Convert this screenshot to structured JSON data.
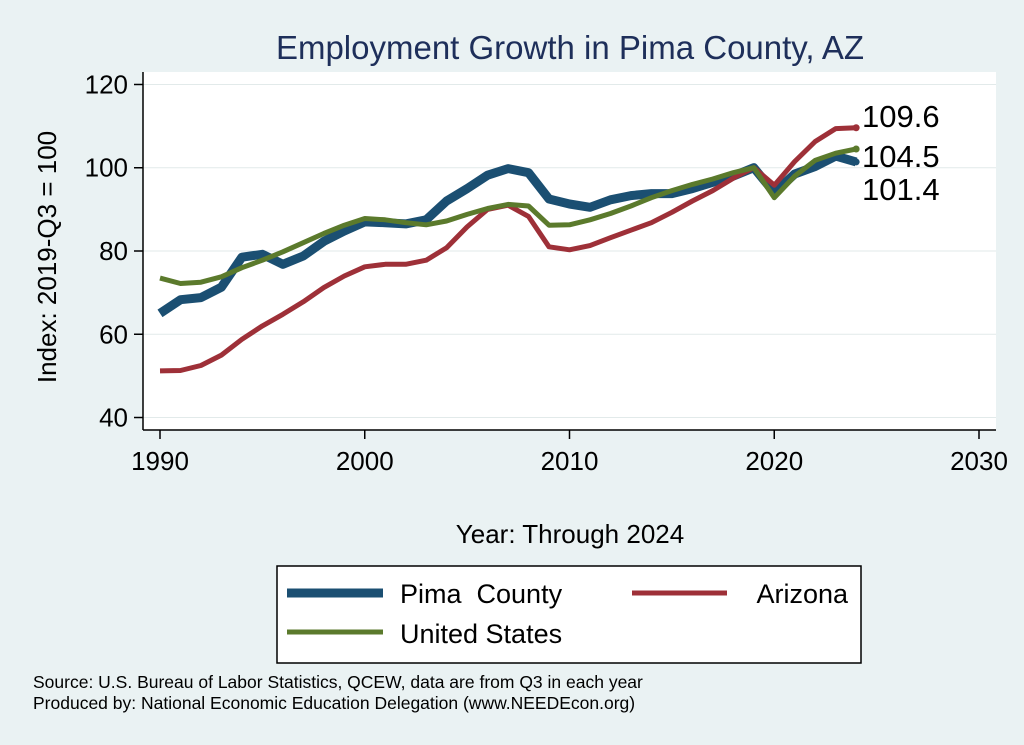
{
  "chart_data": {
    "type": "line",
    "title": "Employment Growth in Pima County, AZ",
    "xlabel": "Year: Through 2024",
    "ylabel": "Index: 2019-Q3 = 100",
    "xlim": [
      1990,
      2030
    ],
    "ylim": [
      37,
      123
    ],
    "xticks": [
      1990,
      2000,
      2010,
      2020,
      2030
    ],
    "yticks": [
      40,
      60,
      80,
      100,
      120
    ],
    "grid": true,
    "legend_position": "bottom",
    "x": [
      1990,
      1991,
      1992,
      1993,
      1994,
      1995,
      1996,
      1997,
      1998,
      1999,
      2000,
      2001,
      2002,
      2003,
      2004,
      2005,
      2006,
      2007,
      2008,
      2009,
      2010,
      2011,
      2012,
      2013,
      2014,
      2015,
      2016,
      2017,
      2018,
      2019,
      2020,
      2021,
      2022,
      2023,
      2024
    ],
    "series": [
      {
        "name": "Pima  County",
        "color": "#1b4f72",
        "values": [
          65.0,
          68.3,
          68.8,
          71.3,
          78.5,
          79.2,
          76.8,
          78.8,
          82.3,
          84.8,
          87.0,
          86.8,
          86.5,
          87.5,
          92.0,
          95.0,
          98.2,
          99.8,
          98.8,
          92.5,
          91.3,
          90.5,
          92.3,
          93.3,
          93.8,
          93.8,
          95.0,
          96.5,
          98.0,
          100.0,
          94.0,
          98.5,
          100.3,
          102.8,
          101.4
        ]
      },
      {
        "name": "Arizona",
        "color": "#9e3038",
        "values": [
          51.2,
          51.3,
          52.5,
          55.0,
          58.8,
          62.0,
          64.8,
          67.8,
          71.2,
          74.0,
          76.2,
          76.8,
          76.8,
          77.8,
          80.8,
          85.8,
          90.0,
          91.0,
          88.3,
          81.0,
          80.3,
          81.3,
          83.2,
          85.0,
          86.8,
          89.3,
          92.0,
          94.5,
          97.5,
          100.0,
          95.8,
          101.5,
          106.3,
          109.4,
          109.6
        ]
      },
      {
        "name": "United States",
        "color": "#5b7a2c",
        "values": [
          73.5,
          72.2,
          72.5,
          73.8,
          76.0,
          77.8,
          79.8,
          82.0,
          84.2,
          86.2,
          87.8,
          87.5,
          86.8,
          86.3,
          87.2,
          88.8,
          90.2,
          91.2,
          90.8,
          86.2,
          86.3,
          87.5,
          89.0,
          90.8,
          92.8,
          94.5,
          96.0,
          97.3,
          98.8,
          100.0,
          92.8,
          98.0,
          101.8,
          103.5,
          104.5
        ]
      }
    ],
    "end_labels": [
      "109.6",
      "104.5",
      "101.4"
    ]
  },
  "source_lines": [
    "Source: U.S. Bureau of Labor Statistics, QCEW, data are from Q3 in each year",
    "Produced by: National Economic Education Delegation (www.NEEDEcon.org)"
  ]
}
